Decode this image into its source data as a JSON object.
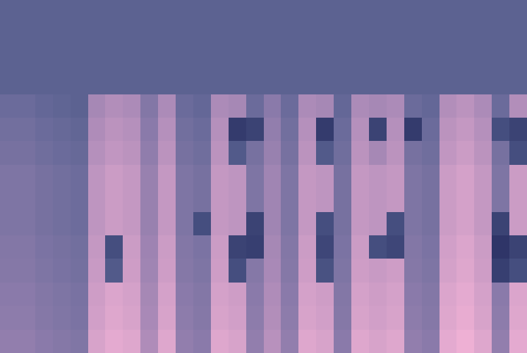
{
  "chart_data": {
    "type": "heatmap",
    "tick_labels": false,
    "cells": [
      [
        40,
        40,
        40,
        40,
        40,
        40,
        40,
        40,
        40,
        40,
        40,
        40,
        40,
        40,
        40,
        40,
        40,
        40,
        40,
        40,
        40,
        40,
        40,
        40,
        40,
        40,
        40,
        40,
        40,
        40
      ],
      [
        40,
        40,
        40,
        40,
        40,
        40,
        40,
        40,
        40,
        40,
        40,
        40,
        40,
        40,
        40,
        40,
        40,
        40,
        40,
        40,
        40,
        40,
        40,
        40,
        40,
        40,
        40,
        40,
        40,
        40
      ],
      [
        40,
        40,
        40,
        40,
        40,
        40,
        40,
        40,
        40,
        40,
        40,
        40,
        40,
        40,
        40,
        40,
        40,
        40,
        40,
        40,
        40,
        40,
        40,
        40,
        40,
        40,
        40,
        40,
        40,
        40
      ],
      [
        40,
        40,
        40,
        40,
        40,
        40,
        40,
        40,
        40,
        40,
        40,
        40,
        40,
        40,
        40,
        40,
        40,
        40,
        40,
        40,
        40,
        40,
        40,
        40,
        40,
        40,
        40,
        40,
        40,
        40
      ],
      [
        47,
        47,
        44,
        42,
        40,
        70,
        74,
        72,
        57,
        72,
        47,
        44,
        72,
        70,
        47,
        60,
        47,
        72,
        70,
        44,
        72,
        70,
        72,
        47,
        44,
        74,
        77,
        72,
        47,
        74
      ],
      [
        50,
        50,
        47,
        45,
        43,
        73,
        77,
        75,
        60,
        75,
        50,
        47,
        75,
        18,
        22,
        63,
        50,
        75,
        18,
        47,
        75,
        22,
        75,
        18,
        47,
        77,
        80,
        75,
        28,
        22
      ],
      [
        52,
        52,
        49,
        47,
        45,
        75,
        79,
        77,
        62,
        77,
        52,
        49,
        77,
        35,
        52,
        65,
        52,
        77,
        35,
        49,
        77,
        70,
        77,
        52,
        49,
        79,
        82,
        77,
        52,
        28
      ],
      [
        55,
        55,
        52,
        50,
        48,
        78,
        82,
        80,
        65,
        80,
        55,
        52,
        80,
        78,
        55,
        68,
        55,
        80,
        78,
        52,
        80,
        78,
        80,
        55,
        52,
        82,
        85,
        80,
        55,
        82
      ],
      [
        55,
        55,
        52,
        50,
        48,
        78,
        82,
        80,
        65,
        80,
        55,
        52,
        80,
        78,
        55,
        68,
        55,
        80,
        78,
        52,
        80,
        78,
        80,
        55,
        52,
        82,
        85,
        80,
        55,
        82
      ],
      [
        55,
        55,
        52,
        50,
        48,
        78,
        82,
        80,
        65,
        80,
        55,
        28,
        80,
        78,
        22,
        68,
        55,
        80,
        28,
        52,
        80,
        78,
        28,
        55,
        52,
        82,
        85,
        80,
        22,
        82
      ],
      [
        57,
        57,
        54,
        52,
        50,
        80,
        28,
        82,
        67,
        82,
        57,
        54,
        82,
        22,
        20,
        70,
        57,
        82,
        24,
        54,
        82,
        28,
        24,
        57,
        54,
        84,
        87,
        82,
        15,
        22
      ],
      [
        58,
        58,
        55,
        53,
        51,
        81,
        35,
        83,
        68,
        83,
        58,
        55,
        83,
        28,
        58,
        71,
        58,
        83,
        30,
        55,
        83,
        81,
        83,
        58,
        55,
        85,
        88,
        83,
        20,
        28
      ],
      [
        60,
        60,
        57,
        55,
        53,
        83,
        87,
        85,
        70,
        85,
        60,
        57,
        85,
        83,
        60,
        73,
        60,
        85,
        83,
        57,
        85,
        83,
        85,
        60,
        57,
        87,
        90,
        85,
        60,
        87
      ],
      [
        61,
        61,
        58,
        56,
        54,
        84,
        88,
        86,
        71,
        86,
        61,
        58,
        86,
        84,
        61,
        74,
        61,
        86,
        84,
        58,
        86,
        84,
        86,
        61,
        58,
        88,
        91,
        86,
        61,
        88
      ],
      [
        63,
        63,
        60,
        58,
        56,
        86,
        90,
        88,
        73,
        88,
        63,
        60,
        88,
        86,
        63,
        76,
        63,
        88,
        86,
        60,
        88,
        86,
        88,
        63,
        60,
        90,
        93,
        88,
        63,
        90
      ]
    ]
  }
}
